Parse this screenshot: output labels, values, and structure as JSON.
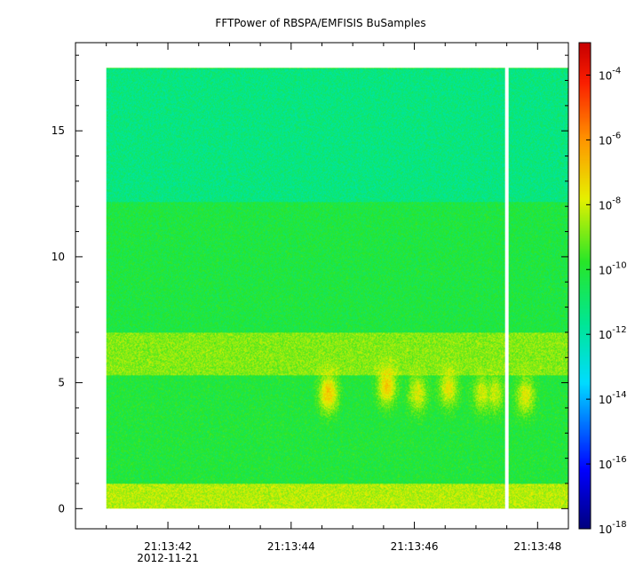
{
  "chart_data": {
    "type": "heatmap",
    "title": "FFTPower of RBSPA/EMFISIS  BuSamples",
    "xlabel": "",
    "ylabel": "",
    "x_ticks": [
      {
        "t": "21:13:42",
        "label": "21:13:42",
        "sub": "2012-11-21"
      },
      {
        "t": "21:13:44",
        "label": "21:13:44",
        "sub": ""
      },
      {
        "t": "21:13:46",
        "label": "21:13:46",
        "sub": ""
      },
      {
        "t": "21:13:48",
        "label": "21:13:48",
        "sub": ""
      }
    ],
    "xlim_seconds": [
      40.5,
      48.5
    ],
    "data_x_range_seconds": [
      41.0,
      48.5
    ],
    "data_gap_seconds": 47.5,
    "ylim": [
      -0.8,
      18.5
    ],
    "y_ticks": [
      0,
      5,
      10,
      15
    ],
    "data_y_range": [
      0,
      17.5
    ],
    "colorbar": {
      "scale": "log",
      "range": [
        "1e-18",
        "1e-3"
      ],
      "tick_labels": [
        {
          "base": "10",
          "exp": "-4"
        },
        {
          "base": "10",
          "exp": "-6"
        },
        {
          "base": "10",
          "exp": "-8"
        },
        {
          "base": "10",
          "exp": "-10"
        },
        {
          "base": "10",
          "exp": "-12"
        },
        {
          "base": "10",
          "exp": "-14"
        },
        {
          "base": "10",
          "exp": "-16"
        },
        {
          "base": "10",
          "exp": "-18"
        }
      ],
      "tick_exponents": [
        -4,
        -6,
        -8,
        -10,
        -12,
        -14,
        -16,
        -18
      ]
    },
    "bands": [
      {
        "y": [
          0,
          1.0
        ],
        "log_power": -8.3
      },
      {
        "y": [
          1.0,
          5.3
        ],
        "log_power": -10.1
      },
      {
        "y": [
          5.3,
          7.0
        ],
        "log_power": -8.8
      },
      {
        "y": [
          7.0,
          12.2
        ],
        "log_power": -10.2
      },
      {
        "y": [
          12.2,
          17.5
        ],
        "log_power": -11.3
      }
    ],
    "bursts": [
      {
        "t": 44.6,
        "y": 4.6,
        "log_power": -6.9
      },
      {
        "t": 45.55,
        "y": 4.9,
        "log_power": -7.0
      },
      {
        "t": 46.05,
        "y": 4.6,
        "log_power": -7.8
      },
      {
        "t": 46.55,
        "y": 4.8,
        "log_power": -7.6
      },
      {
        "t": 47.1,
        "y": 4.6,
        "log_power": -8.0
      },
      {
        "t": 47.3,
        "y": 4.6,
        "log_power": -8.0
      },
      {
        "t": 47.8,
        "y": 4.5,
        "log_power": -7.7
      }
    ]
  }
}
